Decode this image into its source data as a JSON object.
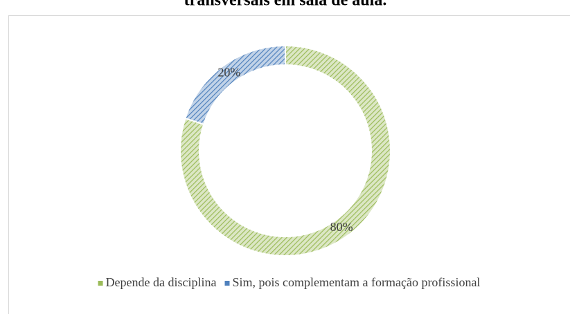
{
  "chart_data": {
    "type": "donut",
    "title": "transversais em sala de aula.",
    "categories": [
      "Depende da disciplina",
      "Sim, pois complementam a formação profissional"
    ],
    "values": [
      80,
      20
    ],
    "value_labels": [
      "80%",
      "20%"
    ],
    "colors": [
      "#9bbb59",
      "#4f81bd"
    ],
    "legend": "bottom"
  }
}
